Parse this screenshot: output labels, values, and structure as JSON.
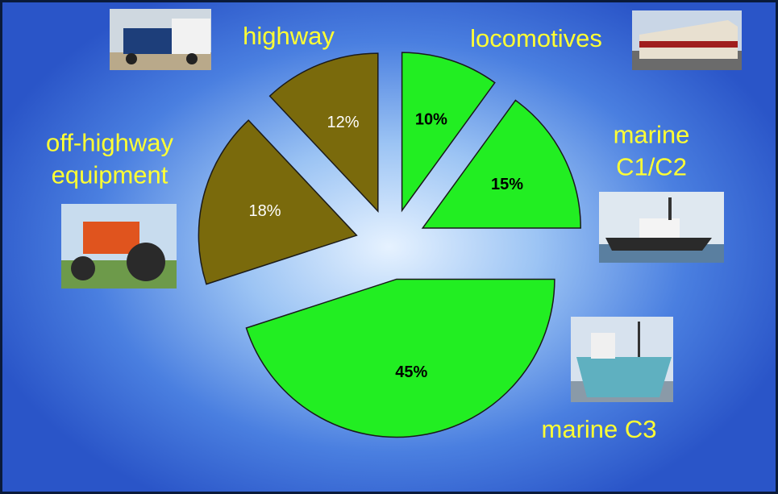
{
  "chart_data": {
    "type": "pie",
    "categories": [
      "locomotives",
      "marine C1/C2",
      "marine C3",
      "off-highway equipment",
      "highway"
    ],
    "values": [
      10,
      15,
      45,
      18,
      12
    ],
    "value_labels": [
      "10%",
      "15%",
      "45%",
      "18%",
      "12%"
    ],
    "colors": [
      "#22ee22",
      "#22ee22",
      "#22ee22",
      "#7a6a0c",
      "#7a6a0c"
    ],
    "start_angle": 0,
    "direction": "clockwise",
    "exploded": true
  }
}
